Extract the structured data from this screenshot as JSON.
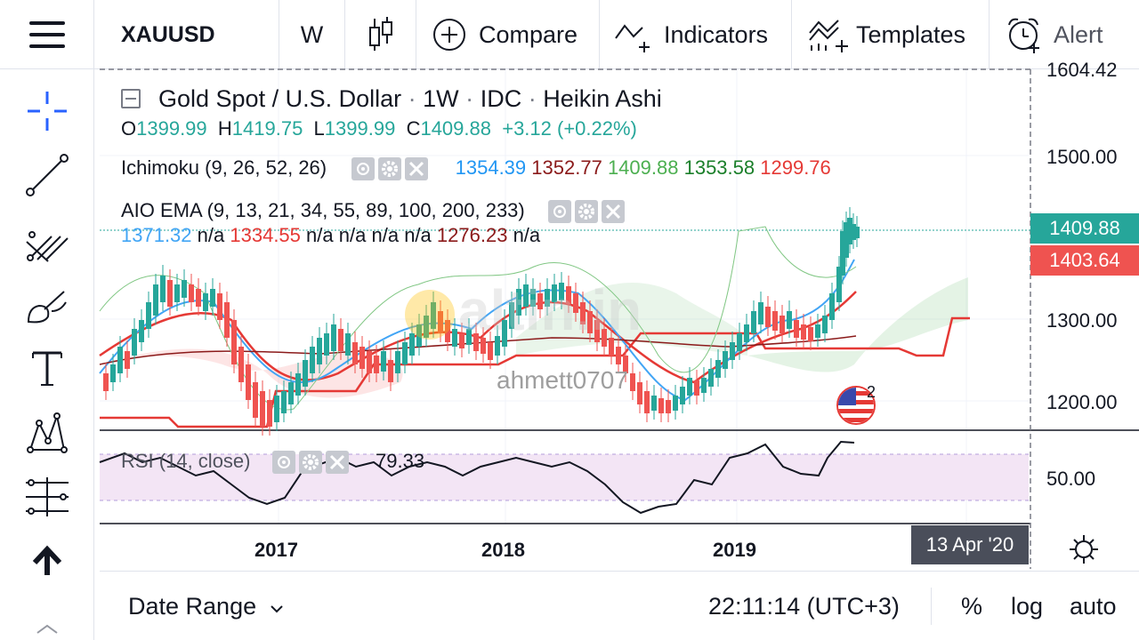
{
  "toolbar": {
    "symbol": "XAUUSD",
    "interval": "W",
    "compare": "Compare",
    "indicators": "Indicators",
    "templates": "Templates",
    "alert": "Alert"
  },
  "legend": {
    "title": "Gold Spot / U.S. Dollar",
    "sep1": "·",
    "interval": "1W",
    "sep2": "·",
    "source": "IDC",
    "sep3": "·",
    "chart_style": "Heikin Ashi",
    "o_label": "O",
    "o_value": "1399.99",
    "h_label": "H",
    "h_value": "1419.75",
    "l_label": "L",
    "l_value": "1399.99",
    "c_label": "C",
    "c_value": "1409.88",
    "change": "+3.12 (+0.22%)"
  },
  "ichimoku": {
    "label": "Ichimoku (9, 26, 52, 26)",
    "v1": "1354.39",
    "v2": "1352.77",
    "v3": "1409.88",
    "v4": "1353.58",
    "v5": "1299.76"
  },
  "aio_ema": {
    "label": "AIO EMA (9, 13, 21, 34, 55, 89, 100, 200, 233)",
    "v1": "1371.32",
    "v2": "n/a",
    "v3": "1334.55",
    "v4": "n/a",
    "v5": "n/a",
    "v6": "n/a",
    "v7": "n/a",
    "v8": "1276.23",
    "v9": "n/a"
  },
  "rsi": {
    "label": "RSI (14, close)",
    "value": "79.33"
  },
  "watermark": {
    "brand": "altin.in",
    "user": "ahmett0707"
  },
  "price_axis": {
    "top_partial": "1604.42",
    "ticks": [
      "1500.00",
      "1300.00",
      "1200.00"
    ],
    "rsi_tick": "50.00",
    "last_price": "1409.88",
    "ema_price": "1403.64"
  },
  "time_axis": {
    "years": [
      "2017",
      "2018",
      "2019"
    ],
    "crosshair_date": "13 Apr '20"
  },
  "events_badge": {
    "count": "2"
  },
  "bottom": {
    "date_range": "Date Range",
    "time": "22:11:14 (UTC+3)",
    "percent": "%",
    "log": "log",
    "auto": "auto"
  },
  "colors": {
    "up": "#26a69a",
    "down": "#ef5350",
    "blue": "#42a5f5",
    "darkred": "#8b1a1a",
    "green": "#4caf50",
    "darkgreen": "#1b7f2a",
    "red": "#e53935",
    "rsi_band": "#f3e5f5"
  }
}
